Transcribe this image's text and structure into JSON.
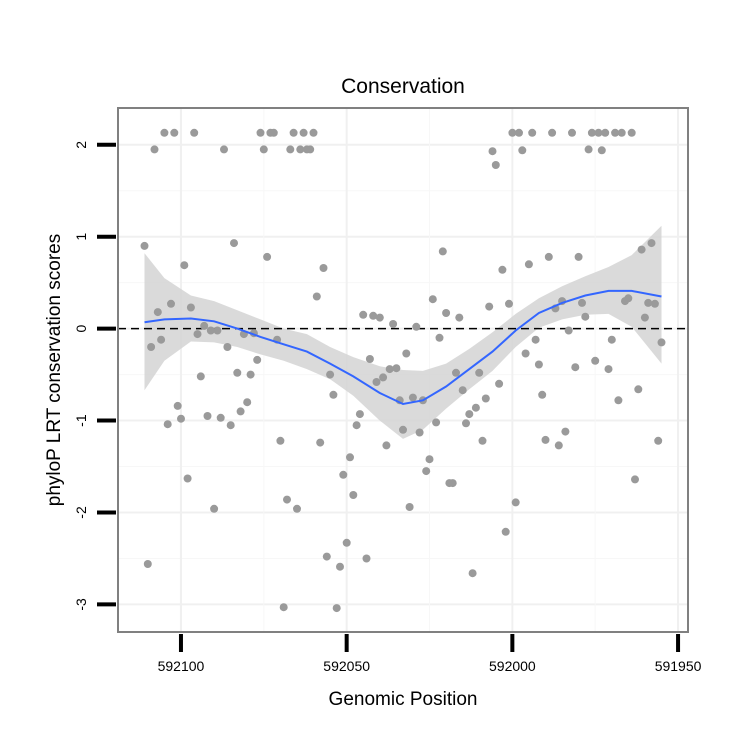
{
  "chart_data": {
    "type": "scatter",
    "title": "Conservation",
    "xlabel": "Genomic Position",
    "ylabel": "phyloP LRT conservation scores",
    "xlim": [
      592119,
      591947
    ],
    "x_reversed": true,
    "ylim": [
      -3.3,
      2.4
    ],
    "x_ticks": [
      592100,
      592050,
      592000,
      591950
    ],
    "x_tick_labels": [
      "592100",
      "592050",
      "592000",
      "591950"
    ],
    "y_ticks": [
      -3,
      -2,
      -1,
      0,
      1,
      2
    ],
    "y_tick_labels": [
      "-3",
      "-2",
      "-1",
      "0",
      "1",
      "2"
    ],
    "grid": true,
    "reference_line": {
      "y": 0,
      "style": "dashed",
      "color": "#000000"
    },
    "colors": {
      "points": "#9a9a9a",
      "smooth": "#3366ff",
      "band": "#d3d3d3",
      "panel_border": "#808080"
    },
    "series": [
      {
        "type": "scatter",
        "points": [
          [
            592111,
            0.9
          ],
          [
            592110,
            -2.56
          ],
          [
            592109,
            -0.2
          ],
          [
            592108,
            1.95
          ],
          [
            592107,
            0.18
          ],
          [
            592106,
            -0.12
          ],
          [
            592105,
            2.13
          ],
          [
            592104,
            -1.04
          ],
          [
            592103,
            0.27
          ],
          [
            592102,
            2.13
          ],
          [
            592101,
            -0.84
          ],
          [
            592100,
            -0.98
          ],
          [
            592099,
            0.69
          ],
          [
            592098,
            -1.63
          ],
          [
            592097,
            0.23
          ],
          [
            592096,
            2.13
          ],
          [
            592095,
            -0.06
          ],
          [
            592094,
            -0.52
          ],
          [
            592093,
            0.03
          ],
          [
            592092,
            -0.95
          ],
          [
            592091,
            -0.02
          ],
          [
            592090,
            -1.96
          ],
          [
            592089,
            -0.02
          ],
          [
            592088,
            -0.97
          ],
          [
            592087,
            1.95
          ],
          [
            592086,
            -0.2
          ],
          [
            592085,
            -1.05
          ],
          [
            592084,
            0.93
          ],
          [
            592083,
            -0.48
          ],
          [
            592082,
            -0.9
          ],
          [
            592081,
            -0.06
          ],
          [
            592080,
            -0.8
          ],
          [
            592079,
            -0.5
          ],
          [
            592078,
            -0.05
          ],
          [
            592077,
            -0.34
          ],
          [
            592076,
            2.13
          ],
          [
            592075,
            1.95
          ],
          [
            592074,
            0.78
          ],
          [
            592073,
            2.13
          ],
          [
            592072,
            2.13
          ],
          [
            592071,
            -0.12
          ],
          [
            592070,
            -1.22
          ],
          [
            592069,
            -3.03
          ],
          [
            592068,
            -1.86
          ],
          [
            592067,
            1.95
          ],
          [
            592066,
            2.13
          ],
          [
            592065,
            -1.96
          ],
          [
            592064,
            1.95
          ],
          [
            592063,
            2.13
          ],
          [
            592062,
            1.95
          ],
          [
            592061,
            1.95
          ],
          [
            592060,
            2.13
          ],
          [
            592059,
            0.35
          ],
          [
            592058,
            -1.24
          ],
          [
            592057,
            0.66
          ],
          [
            592056,
            -2.48
          ],
          [
            592055,
            -0.5
          ],
          [
            592054,
            -0.72
          ],
          [
            592053,
            -3.04
          ],
          [
            592052,
            -2.59
          ],
          [
            592051,
            -1.59
          ],
          [
            592050,
            -2.33
          ],
          [
            592049,
            -1.4
          ],
          [
            592048,
            -1.81
          ],
          [
            592047,
            -1.05
          ],
          [
            592046,
            -0.93
          ],
          [
            592045,
            0.15
          ],
          [
            592044,
            -2.5
          ],
          [
            592043,
            -0.33
          ],
          [
            592042,
            0.14
          ],
          [
            592041,
            -0.58
          ],
          [
            592040,
            0.12
          ],
          [
            592039,
            -0.53
          ],
          [
            592038,
            -1.27
          ],
          [
            592037,
            -0.44
          ],
          [
            592036,
            0.05
          ],
          [
            592035,
            -0.43
          ],
          [
            592034,
            -0.78
          ],
          [
            592033,
            -1.1
          ],
          [
            592032,
            -0.27
          ],
          [
            592031,
            -1.94
          ],
          [
            592030,
            -0.75
          ],
          [
            592029,
            0.02
          ],
          [
            592028,
            -1.13
          ],
          [
            592027,
            -0.78
          ],
          [
            592026,
            -1.55
          ],
          [
            592025,
            -1.42
          ],
          [
            592024,
            0.32
          ],
          [
            592023,
            -1.02
          ],
          [
            592022,
            -0.1
          ],
          [
            592021,
            0.84
          ],
          [
            592020,
            0.17
          ],
          [
            592019,
            -1.68
          ],
          [
            592018,
            -1.68
          ],
          [
            592017,
            -0.48
          ],
          [
            592016,
            0.12
          ],
          [
            592015,
            -0.67
          ],
          [
            592014,
            -1.03
          ],
          [
            592013,
            -0.93
          ],
          [
            592012,
            -2.66
          ],
          [
            592011,
            -0.86
          ],
          [
            592010,
            -0.48
          ],
          [
            592009,
            -1.22
          ],
          [
            592008,
            -0.76
          ],
          [
            592007,
            0.24
          ],
          [
            592006,
            1.93
          ],
          [
            592005,
            1.78
          ],
          [
            592004,
            -0.6
          ],
          [
            592003,
            0.64
          ],
          [
            592002,
            -2.21
          ],
          [
            592001,
            0.27
          ],
          [
            592000,
            2.13
          ],
          [
            591999,
            -1.89
          ],
          [
            591998,
            2.13
          ],
          [
            591997,
            1.94
          ],
          [
            591996,
            -0.27
          ],
          [
            591995,
            0.7
          ],
          [
            591994,
            2.13
          ],
          [
            591993,
            -0.12
          ],
          [
            591992,
            -0.39
          ],
          [
            591991,
            -0.72
          ],
          [
            591990,
            -1.21
          ],
          [
            591989,
            0.78
          ],
          [
            591988,
            2.13
          ],
          [
            591987,
            0.22
          ],
          [
            591986,
            -1.27
          ],
          [
            591985,
            0.3
          ],
          [
            591984,
            -1.12
          ],
          [
            591983,
            -0.02
          ],
          [
            591982,
            2.13
          ],
          [
            591981,
            -0.42
          ],
          [
            591980,
            0.78
          ],
          [
            591979,
            0.28
          ],
          [
            591978,
            0.13
          ],
          [
            591977,
            1.95
          ],
          [
            591976,
            2.13
          ],
          [
            591975,
            -0.35
          ],
          [
            591974,
            2.13
          ],
          [
            591973,
            1.94
          ],
          [
            591972,
            2.13
          ],
          [
            591971,
            -0.44
          ],
          [
            591970,
            -0.12
          ],
          [
            591969,
            2.13
          ],
          [
            591968,
            -0.78
          ],
          [
            591967,
            2.13
          ],
          [
            591966,
            0.3
          ],
          [
            591965,
            0.33
          ],
          [
            591964,
            2.13
          ],
          [
            591963,
            -1.64
          ],
          [
            591962,
            -0.66
          ],
          [
            591961,
            0.86
          ],
          [
            591960,
            0.12
          ],
          [
            591959,
            0.28
          ],
          [
            591958,
            0.93
          ],
          [
            591957,
            0.27
          ],
          [
            591956,
            -1.22
          ],
          [
            591955,
            -0.15
          ]
        ]
      },
      {
        "type": "smooth",
        "x": [
          592111,
          592105,
          592097,
          592090,
          592083,
          592076,
          592069,
          592062,
          592055,
          592048,
          592040,
          592033,
          592027,
          592020,
          592013,
          592006,
          591999,
          591992,
          591985,
          591978,
          591971,
          591964,
          591955
        ],
        "y": [
          0.07,
          0.1,
          0.11,
          0.08,
          0.0,
          -0.09,
          -0.17,
          -0.25,
          -0.38,
          -0.52,
          -0.7,
          -0.82,
          -0.78,
          -0.63,
          -0.44,
          -0.25,
          -0.02,
          0.17,
          0.28,
          0.36,
          0.41,
          0.41,
          0.35
        ],
        "y_lower": [
          -0.67,
          -0.35,
          -0.14,
          -0.15,
          -0.2,
          -0.28,
          -0.35,
          -0.44,
          -0.55,
          -0.73,
          -1.0,
          -1.2,
          -1.1,
          -0.87,
          -0.66,
          -0.46,
          -0.2,
          0.01,
          0.1,
          0.15,
          0.16,
          0.02,
          -0.38
        ],
        "y_upper": [
          0.82,
          0.55,
          0.36,
          0.3,
          0.2,
          0.1,
          0.0,
          -0.06,
          -0.2,
          -0.31,
          -0.41,
          -0.45,
          -0.46,
          -0.38,
          -0.22,
          -0.04,
          0.16,
          0.33,
          0.46,
          0.57,
          0.67,
          0.8,
          1.12
        ]
      }
    ]
  }
}
